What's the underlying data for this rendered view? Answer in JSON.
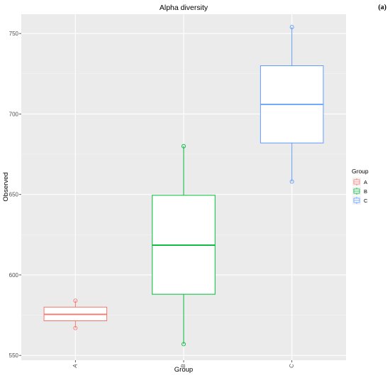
{
  "chart_data": {
    "type": "boxplot",
    "title": "Alpha diversity",
    "panel_label": "(a)",
    "xlabel": "Group",
    "ylabel": "Observed",
    "categories": [
      "A",
      "B",
      "C"
    ],
    "ylim": [
      547,
      762
    ],
    "yticks": [
      550,
      600,
      650,
      700,
      750
    ],
    "grid": true,
    "legend": {
      "title": "Group",
      "placement": "right",
      "entries": [
        "A",
        "B",
        "C"
      ]
    },
    "colors": {
      "A": "#F8766D",
      "B": "#00BA38",
      "C": "#619CFF"
    },
    "series": [
      {
        "group": "A",
        "min": 567,
        "q1": 571.5,
        "median": 575.5,
        "q3": 580,
        "max": 584,
        "points": [
          567,
          584
        ]
      },
      {
        "group": "B",
        "min": 557,
        "q1": 588,
        "median": 618.5,
        "q3": 649.5,
        "max": 680,
        "points": [
          557,
          680
        ]
      },
      {
        "group": "C",
        "min": 658,
        "q1": 682,
        "median": 706,
        "q3": 730,
        "max": 754,
        "points": [
          658,
          754
        ]
      }
    ]
  }
}
